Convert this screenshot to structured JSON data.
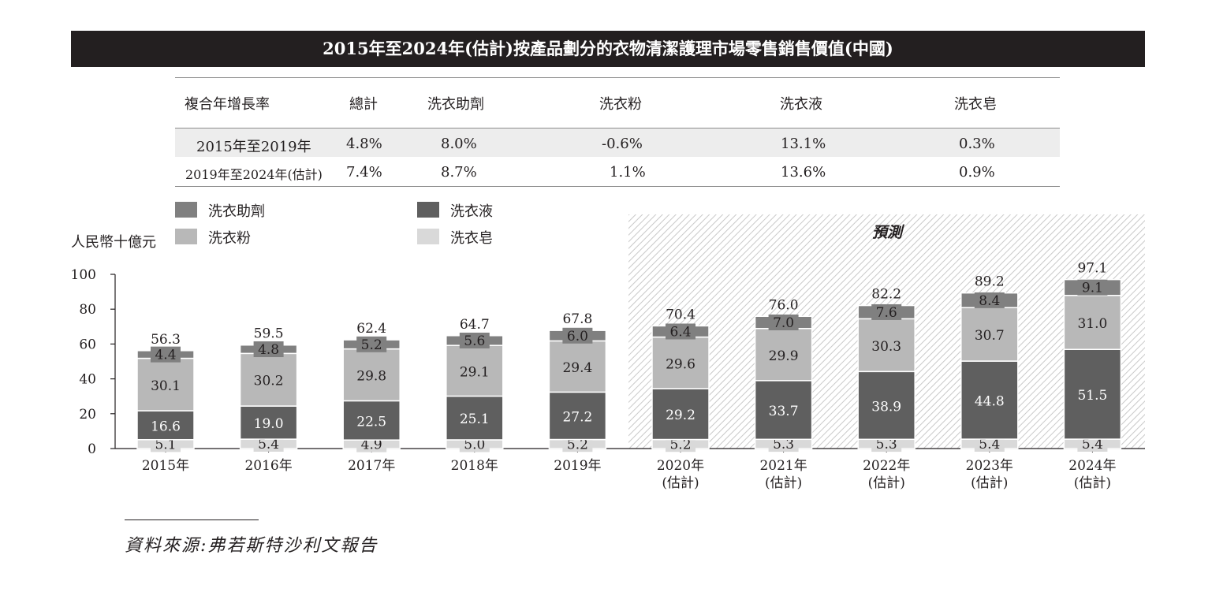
{
  "title": "2015年至2024年(估計)按產品劃分的衣物清潔護理市場零售銷售價值(中國)",
  "cagr_table": {
    "headers": [
      "複合年增長率",
      "總計",
      "洗衣助劑",
      "洗衣粉",
      "洗衣液",
      "洗衣皂"
    ],
    "rows": [
      {
        "period": "2015年至2019年",
        "values": [
          "4.8%",
          "8.0%",
          "-0.6%",
          "13.1%",
          "0.3%"
        ]
      },
      {
        "period": "2019年至2024年(估計)",
        "values": [
          "7.4%",
          "8.7%",
          "1.1%",
          "13.6%",
          "0.9%"
        ]
      }
    ]
  },
  "forecast_label": "預測",
  "source": "資料來源:弗若斯特沙利文報告",
  "colors": {
    "additives": "#808080",
    "powder": "#b8b8b8",
    "liquid": "#5f5f5f",
    "soap": "#d9d9d9",
    "dark": "#231f20"
  },
  "chart_data": {
    "type": "bar",
    "stacked": true,
    "ylabel": "人民幣十億元",
    "ylim": [
      0,
      100
    ],
    "yticks": [
      0,
      20,
      40,
      60,
      80,
      100
    ],
    "legend_position": "top-left",
    "categories": [
      [
        "2015年"
      ],
      [
        "2016年"
      ],
      [
        "2017年"
      ],
      [
        "2018年"
      ],
      [
        "2019年"
      ],
      [
        "2020年",
        "(估計)"
      ],
      [
        "2021年",
        "(估計)"
      ],
      [
        "2022年",
        "(估計)"
      ],
      [
        "2023年",
        "(估計)"
      ],
      [
        "2024年",
        "(估計)"
      ]
    ],
    "forecast_start_index": 5,
    "series": [
      {
        "name": "洗衣皂",
        "key": "soap",
        "values": [
          5.1,
          5.4,
          4.9,
          5.0,
          5.2,
          5.2,
          5.3,
          5.3,
          5.4,
          5.4
        ]
      },
      {
        "name": "洗衣液",
        "key": "liquid",
        "values": [
          16.6,
          19.0,
          22.5,
          25.1,
          27.2,
          29.2,
          33.7,
          38.9,
          44.8,
          51.5
        ]
      },
      {
        "name": "洗衣粉",
        "key": "powder",
        "values": [
          30.1,
          30.2,
          29.8,
          29.1,
          29.4,
          29.6,
          29.9,
          30.3,
          30.7,
          31.0
        ]
      },
      {
        "name": "洗衣助劑",
        "key": "additives",
        "values": [
          4.4,
          4.8,
          5.2,
          5.6,
          6.0,
          6.4,
          7.0,
          7.6,
          8.4,
          9.1
        ]
      }
    ],
    "totals": [
      56.3,
      59.5,
      62.4,
      64.7,
      67.8,
      70.4,
      76.0,
      82.2,
      89.2,
      97.1
    ],
    "legend": [
      {
        "name": "洗衣助劑",
        "key": "additives"
      },
      {
        "name": "洗衣液",
        "key": "liquid"
      },
      {
        "name": "洗衣粉",
        "key": "powder"
      },
      {
        "name": "洗衣皂",
        "key": "soap"
      }
    ]
  }
}
